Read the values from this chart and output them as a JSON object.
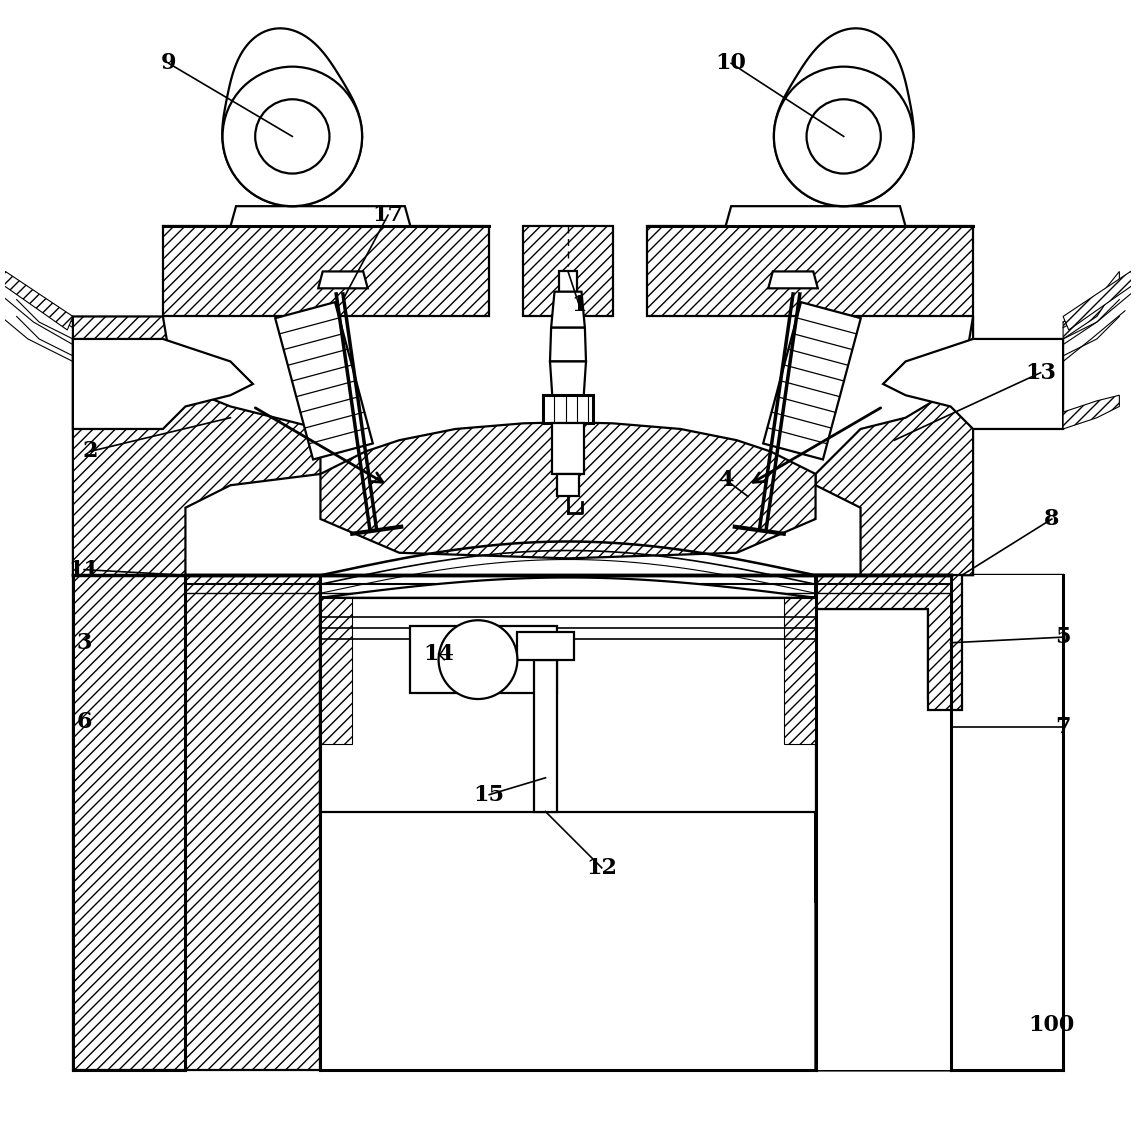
{
  "bg_color": "#ffffff",
  "line_color": "#000000",
  "fig_width": 11.36,
  "fig_height": 11.28,
  "lw_main": 1.6,
  "lw_thick": 2.2,
  "lw_thin": 0.8,
  "font_size": 16
}
